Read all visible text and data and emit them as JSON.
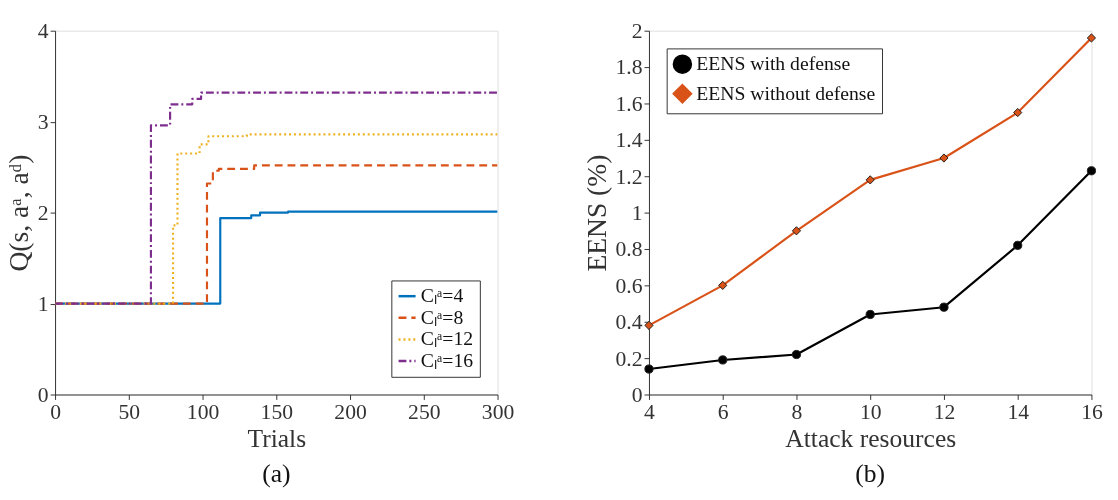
{
  "chart_data": [
    {
      "type": "step",
      "title": "(a)",
      "xlabel": "Trials",
      "ylabel": "Q(s, aᵃ, aᵈ)",
      "xlim": [
        0,
        300
      ],
      "xticks": [
        0,
        50,
        100,
        150,
        200,
        250,
        300
      ],
      "ylim": [
        0,
        4
      ],
      "yticks": [
        0,
        1,
        2,
        3,
        4
      ],
      "grid": false,
      "legend": "bottom right",
      "marker": "none",
      "series": [
        {
          "name": "Cₗᵃ=4",
          "color": "#0072bd",
          "line_style": "solid",
          "x": [
            0,
            112,
            133,
            139,
            158,
            300
          ],
          "values": [
            1,
            1.94,
            1.97,
            2.0,
            2.01,
            2.01
          ]
        },
        {
          "name": "Cₗᵃ=8",
          "color": "#d95319",
          "line_style": "dashed",
          "x": [
            0,
            103,
            107,
            111,
            135,
            300
          ],
          "values": [
            1,
            2.32,
            2.46,
            2.48,
            2.52,
            2.52
          ]
        },
        {
          "name": "Cₗᵃ=12",
          "color": "#edb120",
          "line_style": "dotted",
          "x": [
            0,
            80,
            83,
            98,
            104,
            130,
            300
          ],
          "values": [
            1,
            1.86,
            2.65,
            2.75,
            2.84,
            2.86,
            2.86
          ]
        },
        {
          "name": "Cₗᵃ=16",
          "color": "#7e2f8e",
          "line_style": "dashdot",
          "x": [
            0,
            65,
            78,
            93,
            99,
            300
          ],
          "values": [
            1,
            2.96,
            3.19,
            3.25,
            3.32,
            3.32
          ]
        }
      ]
    },
    {
      "type": "line",
      "title": "(b)",
      "xlabel": "Attack resources",
      "ylabel": "EENS (%)",
      "xlim": [
        4,
        16
      ],
      "xticks": [
        4,
        6,
        8,
        10,
        12,
        14,
        16
      ],
      "ylim": [
        0,
        2
      ],
      "yticks": [
        0,
        0.2,
        0.4,
        0.6,
        0.8,
        1,
        1.2,
        1.4,
        1.6,
        1.8,
        2
      ],
      "grid": false,
      "legend": "top left",
      "line_style": "solid",
      "x": [
        4,
        6,
        8,
        10,
        12,
        14,
        16
      ],
      "series": [
        {
          "name": "EENS with defense",
          "color": "#000000",
          "marker": "circle",
          "values": [
            0.14,
            0.19,
            0.22,
            0.44,
            0.48,
            0.82,
            1.23
          ]
        },
        {
          "name": "EENS without defense",
          "color": "#d95319",
          "marker": "diamond",
          "values": [
            0.38,
            0.6,
            0.9,
            1.18,
            1.3,
            1.55,
            1.96
          ]
        }
      ]
    }
  ]
}
